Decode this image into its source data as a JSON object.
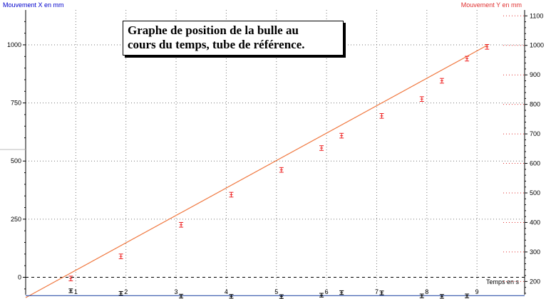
{
  "chart_data": {
    "type": "scatter",
    "title_lines": [
      "Graphe de position de la bulle au",
      "cours du temps, tube de référence."
    ],
    "left_axis": {
      "label": "Mouvement X en mm",
      "color": "#0000cc",
      "ylim": [
        -75,
        1150
      ],
      "ticks": [
        0,
        250,
        500,
        750,
        1000
      ]
    },
    "right_axis": {
      "label": "Mouvement Y en mm",
      "color": "#e03030",
      "ylim": [
        155,
        1120
      ],
      "ticks": [
        200,
        300,
        400,
        500,
        600,
        700,
        800,
        900,
        1000,
        1100
      ]
    },
    "x_axis": {
      "label": "Temps en s",
      "xlim": [
        0,
        9.95
      ],
      "ticks": [
        1,
        2,
        3,
        4,
        5,
        6,
        7,
        8,
        9
      ]
    },
    "grid": true,
    "series": [
      {
        "axis": "right",
        "color": "#ee2222",
        "marker": "errorbar",
        "points": [
          [
            0.9,
            210
          ],
          [
            1.9,
            285
          ],
          [
            3.1,
            392
          ],
          [
            4.1,
            494
          ],
          [
            5.1,
            578
          ],
          [
            5.9,
            652
          ],
          [
            6.3,
            694
          ],
          [
            7.1,
            761
          ],
          [
            7.9,
            818
          ],
          [
            8.3,
            880
          ],
          [
            8.8,
            955
          ],
          [
            9.2,
            995
          ]
        ],
        "error": 8
      },
      {
        "axis": "left",
        "color": "#000000",
        "marker": "errorbar",
        "points": [
          [
            0.9,
            -58
          ],
          [
            1.9,
            -69
          ],
          [
            3.1,
            -81
          ],
          [
            4.1,
            -82
          ],
          [
            5.1,
            -83
          ],
          [
            5.9,
            -77
          ],
          [
            6.3,
            -66
          ],
          [
            7.1,
            -67
          ],
          [
            7.9,
            -80
          ],
          [
            8.3,
            -82
          ],
          [
            8.8,
            -80
          ]
        ],
        "error": 8
      }
    ],
    "fit_lines": [
      {
        "color": "#f07840",
        "axis": "right",
        "from": [
          0,
          145
        ],
        "to": [
          9.2,
          1000
        ]
      },
      {
        "color": "#3355aa",
        "axis": "left",
        "from": [
          0,
          -79
        ],
        "to": [
          9.95,
          -79
        ]
      }
    ],
    "zero_reference": {
      "axis": "left",
      "value": 0,
      "style": "dashed"
    }
  }
}
